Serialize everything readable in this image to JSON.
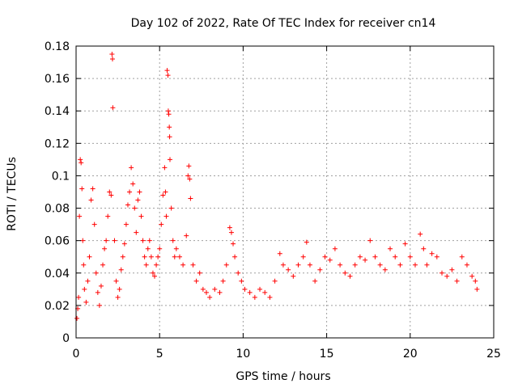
{
  "chart_data": {
    "type": "scatter",
    "title": "Day 102 of 2022, Rate Of TEC Index for receiver cn14",
    "xlabel": "GPS time / hours",
    "ylabel": "ROTI / TECUs",
    "xlim": [
      0,
      25
    ],
    "ylim": [
      0,
      0.18
    ],
    "xticks": [
      0,
      5,
      10,
      15,
      20,
      25
    ],
    "xtick_labels": [
      "0",
      "5",
      "10",
      "15",
      "20",
      "25"
    ],
    "yticks": [
      0,
      0.02,
      0.04,
      0.06,
      0.08,
      0.1,
      0.12,
      0.14,
      0.16,
      0.18
    ],
    "ytick_labels": [
      "0",
      "0.02",
      "0.04",
      "0.06",
      "0.08",
      "0.1",
      "0.12",
      "0.14",
      "0.16",
      "0.18"
    ],
    "grid": true,
    "marker": "+",
    "color": "#ff0000",
    "series": [
      {
        "name": "ROTI",
        "points": [
          [
            0.05,
            0.012
          ],
          [
            0.1,
            0.018
          ],
          [
            0.15,
            0.025
          ],
          [
            0.2,
            0.075
          ],
          [
            0.25,
            0.11
          ],
          [
            0.3,
            0.108
          ],
          [
            0.35,
            0.092
          ],
          [
            0.4,
            0.06
          ],
          [
            0.45,
            0.045
          ],
          [
            0.5,
            0.03
          ],
          [
            0.6,
            0.022
          ],
          [
            0.7,
            0.035
          ],
          [
            0.8,
            0.05
          ],
          [
            0.9,
            0.085
          ],
          [
            1.0,
            0.092
          ],
          [
            1.1,
            0.07
          ],
          [
            1.2,
            0.04
          ],
          [
            1.3,
            0.028
          ],
          [
            1.4,
            0.02
          ],
          [
            1.5,
            0.032
          ],
          [
            1.6,
            0.045
          ],
          [
            1.7,
            0.055
          ],
          [
            1.8,
            0.06
          ],
          [
            1.9,
            0.075
          ],
          [
            2.0,
            0.09
          ],
          [
            2.1,
            0.088
          ],
          [
            2.15,
            0.175
          ],
          [
            2.18,
            0.172
          ],
          [
            2.2,
            0.142
          ],
          [
            2.3,
            0.06
          ],
          [
            2.4,
            0.035
          ],
          [
            2.5,
            0.025
          ],
          [
            2.6,
            0.03
          ],
          [
            2.7,
            0.042
          ],
          [
            2.8,
            0.05
          ],
          [
            2.9,
            0.058
          ],
          [
            3.0,
            0.07
          ],
          [
            3.1,
            0.082
          ],
          [
            3.2,
            0.09
          ],
          [
            3.3,
            0.105
          ],
          [
            3.4,
            0.095
          ],
          [
            3.5,
            0.08
          ],
          [
            3.6,
            0.065
          ],
          [
            3.7,
            0.085
          ],
          [
            3.8,
            0.09
          ],
          [
            3.9,
            0.075
          ],
          [
            4.0,
            0.06
          ],
          [
            4.1,
            0.05
          ],
          [
            4.2,
            0.045
          ],
          [
            4.3,
            0.055
          ],
          [
            4.4,
            0.06
          ],
          [
            4.5,
            0.05
          ],
          [
            4.6,
            0.04
          ],
          [
            4.7,
            0.038
          ],
          [
            4.8,
            0.045
          ],
          [
            4.9,
            0.05
          ],
          [
            5.0,
            0.055
          ],
          [
            5.1,
            0.07
          ],
          [
            5.2,
            0.088
          ],
          [
            5.3,
            0.105
          ],
          [
            5.35,
            0.09
          ],
          [
            5.4,
            0.075
          ],
          [
            5.45,
            0.165
          ],
          [
            5.5,
            0.162
          ],
          [
            5.52,
            0.14
          ],
          [
            5.55,
            0.138
          ],
          [
            5.58,
            0.13
          ],
          [
            5.6,
            0.124
          ],
          [
            5.62,
            0.11
          ],
          [
            5.7,
            0.08
          ],
          [
            5.8,
            0.06
          ],
          [
            5.9,
            0.05
          ],
          [
            6.0,
            0.055
          ],
          [
            6.2,
            0.05
          ],
          [
            6.4,
            0.045
          ],
          [
            6.6,
            0.063
          ],
          [
            6.7,
            0.1
          ],
          [
            6.75,
            0.106
          ],
          [
            6.8,
            0.098
          ],
          [
            6.85,
            0.086
          ],
          [
            7.0,
            0.045
          ],
          [
            7.2,
            0.035
          ],
          [
            7.4,
            0.04
          ],
          [
            7.6,
            0.03
          ],
          [
            7.8,
            0.028
          ],
          [
            8.0,
            0.025
          ],
          [
            8.3,
            0.03
          ],
          [
            8.6,
            0.028
          ],
          [
            8.8,
            0.035
          ],
          [
            9.0,
            0.045
          ],
          [
            9.2,
            0.068
          ],
          [
            9.3,
            0.065
          ],
          [
            9.4,
            0.058
          ],
          [
            9.5,
            0.05
          ],
          [
            9.7,
            0.04
          ],
          [
            9.9,
            0.035
          ],
          [
            10.1,
            0.03
          ],
          [
            10.4,
            0.028
          ],
          [
            10.7,
            0.025
          ],
          [
            11.0,
            0.03
          ],
          [
            11.3,
            0.028
          ],
          [
            11.6,
            0.025
          ],
          [
            11.9,
            0.035
          ],
          [
            12.2,
            0.052
          ],
          [
            12.4,
            0.045
          ],
          [
            12.7,
            0.042
          ],
          [
            13.0,
            0.038
          ],
          [
            13.3,
            0.045
          ],
          [
            13.6,
            0.05
          ],
          [
            13.8,
            0.059
          ],
          [
            14.0,
            0.045
          ],
          [
            14.3,
            0.035
          ],
          [
            14.6,
            0.042
          ],
          [
            14.9,
            0.05
          ],
          [
            15.2,
            0.048
          ],
          [
            15.5,
            0.055
          ],
          [
            15.8,
            0.045
          ],
          [
            16.1,
            0.04
          ],
          [
            16.4,
            0.038
          ],
          [
            16.7,
            0.045
          ],
          [
            17.0,
            0.05
          ],
          [
            17.3,
            0.048
          ],
          [
            17.6,
            0.06
          ],
          [
            17.9,
            0.05
          ],
          [
            18.2,
            0.045
          ],
          [
            18.5,
            0.042
          ],
          [
            18.8,
            0.055
          ],
          [
            19.1,
            0.05
          ],
          [
            19.4,
            0.045
          ],
          [
            19.7,
            0.058
          ],
          [
            20.0,
            0.05
          ],
          [
            20.3,
            0.045
          ],
          [
            20.6,
            0.064
          ],
          [
            20.8,
            0.055
          ],
          [
            21.0,
            0.045
          ],
          [
            21.3,
            0.052
          ],
          [
            21.6,
            0.05
          ],
          [
            21.9,
            0.04
          ],
          [
            22.2,
            0.038
          ],
          [
            22.5,
            0.042
          ],
          [
            22.8,
            0.035
          ],
          [
            23.1,
            0.05
          ],
          [
            23.4,
            0.045
          ],
          [
            23.7,
            0.038
          ],
          [
            23.9,
            0.035
          ],
          [
            24.0,
            0.03
          ]
        ]
      }
    ]
  }
}
